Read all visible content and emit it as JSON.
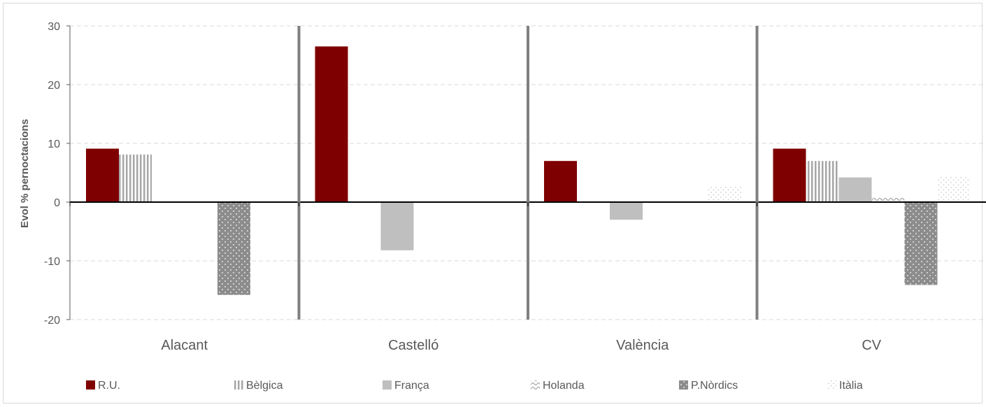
{
  "chart_data": {
    "type": "bar",
    "categories": [
      "Alacant",
      "Castelló",
      "València",
      "CV"
    ],
    "series": [
      {
        "name": "R.U.",
        "values": [
          9.1,
          26.5,
          7.0,
          9.1
        ],
        "color": "#7f0000",
        "pattern": "solid"
      },
      {
        "name": "Bèlgica",
        "values": [
          8.1,
          0,
          0,
          7.0
        ],
        "color": "#a6a6a6",
        "pattern": "vertical-stripes"
      },
      {
        "name": "França",
        "values": [
          0,
          -8.2,
          -3.0,
          4.2
        ],
        "color": "#bfbfbf",
        "pattern": "solid"
      },
      {
        "name": "Holanda",
        "values": [
          0,
          0,
          0,
          0.8
        ],
        "color": "#a6a6a6",
        "pattern": "waves"
      },
      {
        "name": "P.Nòrdics",
        "values": [
          -15.8,
          0,
          0,
          -14.1
        ],
        "color": "#8c8c8c",
        "pattern": "dots-dark"
      },
      {
        "name": "Itàlia",
        "values": [
          0,
          0,
          2.6,
          4.4
        ],
        "color": "#c0c0c0",
        "pattern": "dots-light"
      }
    ],
    "ylabel": "Evol % pernoctacions",
    "xlabel": "",
    "ylim": [
      -20,
      30
    ],
    "yticks": [
      30,
      20,
      10,
      0,
      -10,
      -20
    ],
    "grid": true,
    "legend_position": "bottom"
  }
}
